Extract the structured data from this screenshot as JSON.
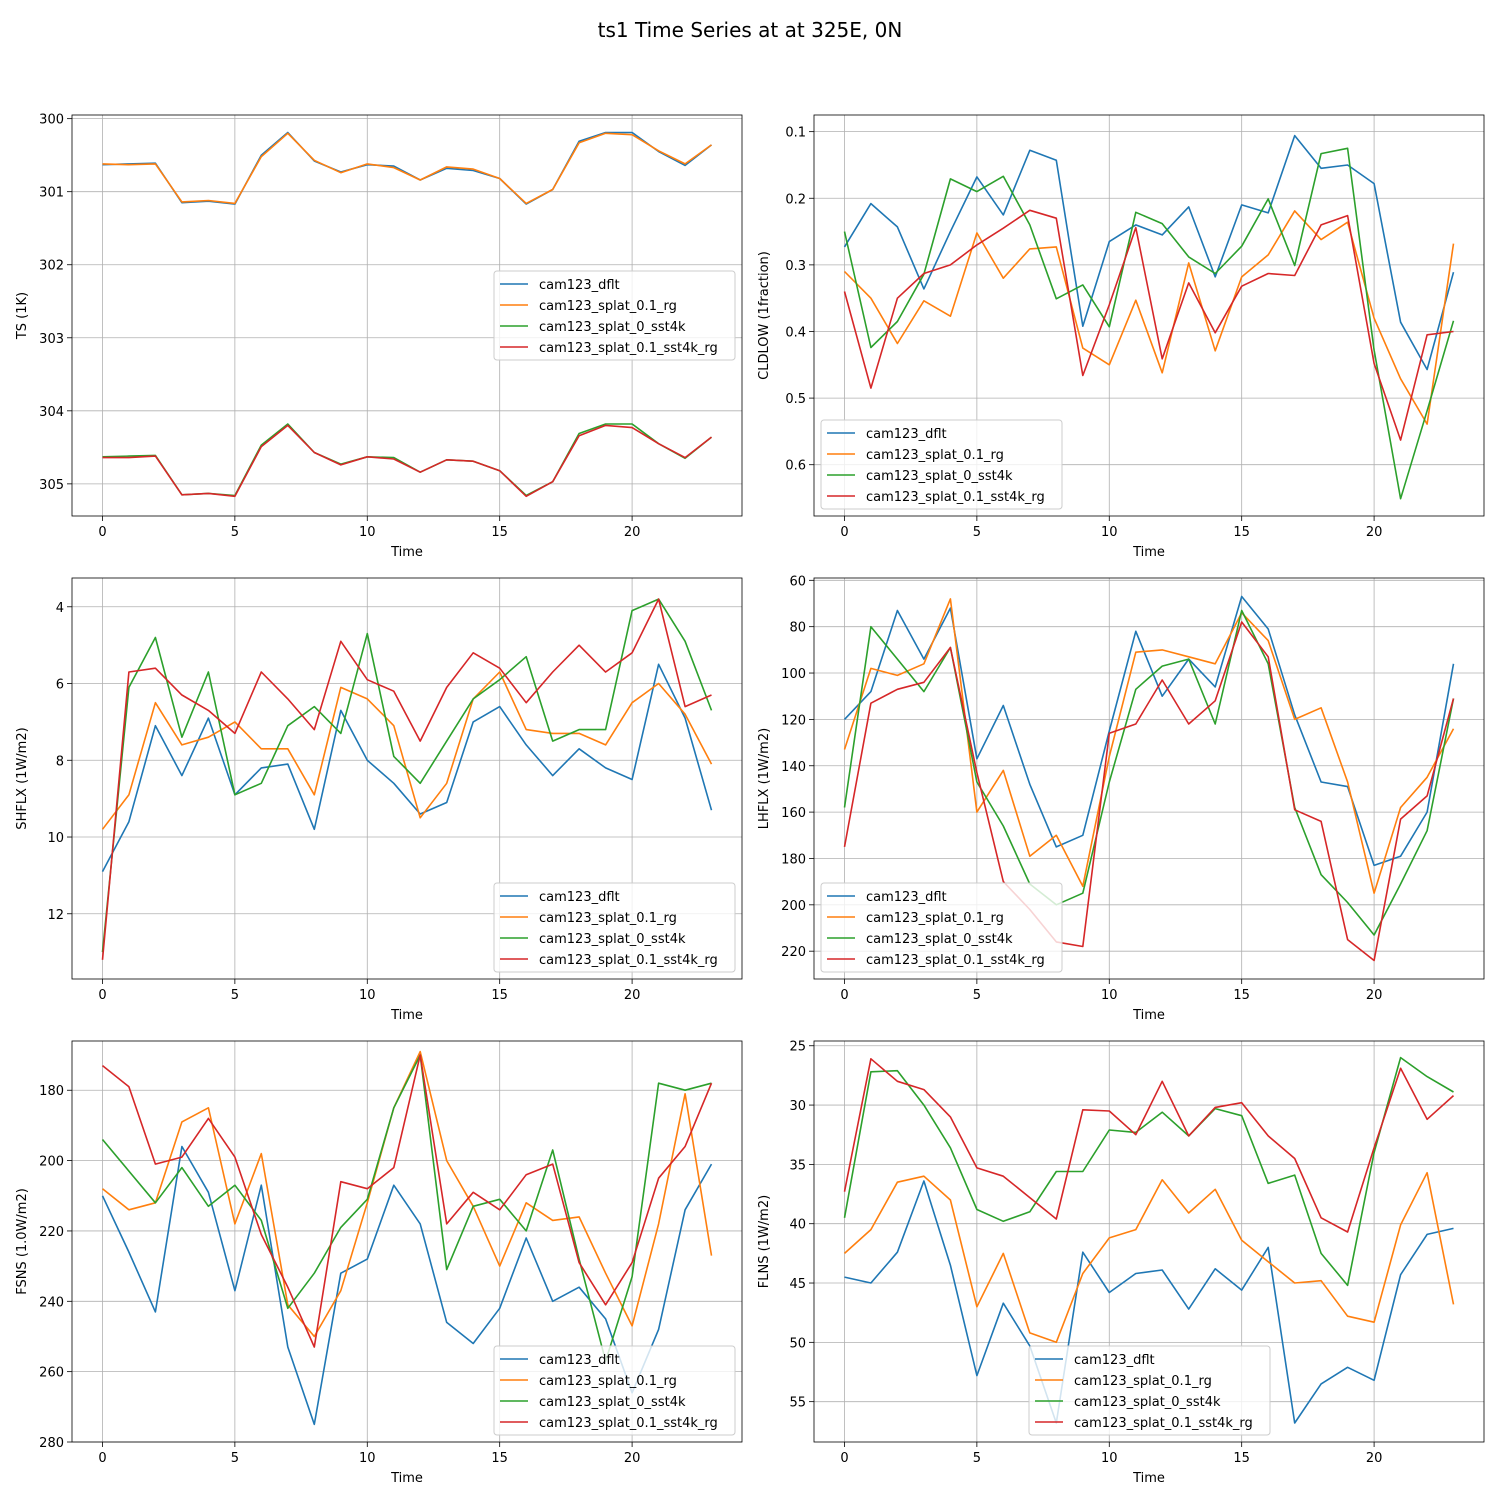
{
  "figure": {
    "title": "ts1 Time Series at at 325E, 0N"
  },
  "colors": {
    "cam123_dflt": "#1f77b4",
    "cam123_splat_0.1_rg": "#ff7f0e",
    "cam123_splat_0_sst4k": "#2ca02c",
    "cam123_splat_0.1_sst4k_rg": "#d62728"
  },
  "chart_data": [
    {
      "type": "line",
      "title": "",
      "xlabel": "Time",
      "ylabel": "TS (1K)",
      "y_inverted": true,
      "xlim": [
        -1.15,
        24.15
      ],
      "ylim": [
        305.44,
        299.95
      ],
      "xticks": [
        0,
        5,
        10,
        15,
        20
      ],
      "yticks": [
        300,
        301,
        302,
        303,
        304,
        305
      ],
      "legend_loc": "center-right",
      "x": [
        0,
        1,
        2,
        3,
        4,
        5,
        6,
        7,
        8,
        9,
        10,
        11,
        12,
        13,
        14,
        15,
        16,
        17,
        18,
        19,
        20,
        21,
        22,
        23
      ],
      "series": [
        {
          "name": "cam123_dflt",
          "values": [
            300.63,
            300.62,
            300.61,
            301.15,
            301.13,
            301.17,
            300.5,
            300.19,
            300.58,
            300.73,
            300.63,
            300.65,
            300.84,
            300.68,
            300.71,
            300.82,
            301.17,
            300.97,
            300.31,
            300.19,
            300.19,
            300.45,
            300.64,
            300.36
          ]
        },
        {
          "name": "cam123_splat_0.1_rg",
          "values": [
            300.62,
            300.63,
            300.62,
            301.14,
            301.12,
            301.16,
            300.52,
            300.2,
            300.57,
            300.74,
            300.62,
            300.67,
            300.84,
            300.66,
            300.69,
            300.82,
            301.16,
            300.97,
            300.33,
            300.2,
            300.22,
            300.44,
            300.62,
            300.36
          ]
        },
        {
          "name": "cam123_splat_0_sst4k",
          "values": [
            304.63,
            304.62,
            304.61,
            305.15,
            305.13,
            305.16,
            304.47,
            304.18,
            304.57,
            304.73,
            304.63,
            304.64,
            304.84,
            304.67,
            304.69,
            304.82,
            305.16,
            304.97,
            304.31,
            304.18,
            304.18,
            304.45,
            304.65,
            304.36
          ]
        },
        {
          "name": "cam123_splat_0.1_sst4k_rg",
          "values": [
            304.64,
            304.64,
            304.62,
            305.15,
            305.13,
            305.17,
            304.49,
            304.2,
            304.57,
            304.74,
            304.63,
            304.66,
            304.84,
            304.67,
            304.69,
            304.82,
            305.17,
            304.97,
            304.34,
            304.2,
            304.23,
            304.45,
            304.64,
            304.36
          ]
        }
      ]
    },
    {
      "type": "line",
      "title": "",
      "xlabel": "Time",
      "ylabel": "CLDLOW (1fraction)",
      "y_inverted": true,
      "xlim": [
        -1.15,
        24.15
      ],
      "ylim": [
        0.677,
        0.075
      ],
      "xticks": [
        0,
        5,
        10,
        15,
        20
      ],
      "yticks": [
        0.1,
        0.2,
        0.3,
        0.4,
        0.5,
        0.6
      ],
      "legend_loc": "lower-left",
      "x": [
        0,
        1,
        2,
        3,
        4,
        5,
        6,
        7,
        8,
        9,
        10,
        11,
        12,
        13,
        14,
        15,
        16,
        17,
        18,
        19,
        20,
        21,
        22,
        23
      ],
      "series": [
        {
          "name": "cam123_dflt",
          "values": [
            0.273,
            0.208,
            0.243,
            0.336,
            0.25,
            0.168,
            0.225,
            0.128,
            0.143,
            0.392,
            0.265,
            0.24,
            0.255,
            0.213,
            0.318,
            0.21,
            0.222,
            0.106,
            0.155,
            0.15,
            0.178,
            0.386,
            0.457,
            0.311
          ]
        },
        {
          "name": "cam123_splat_0.1_rg",
          "values": [
            0.31,
            0.35,
            0.418,
            0.354,
            0.377,
            0.252,
            0.32,
            0.276,
            0.273,
            0.425,
            0.45,
            0.353,
            0.462,
            0.297,
            0.429,
            0.318,
            0.285,
            0.219,
            0.262,
            0.236,
            0.38,
            0.471,
            0.539,
            0.268
          ]
        },
        {
          "name": "cam123_splat_0_sst4k",
          "values": [
            0.25,
            0.424,
            0.385,
            0.314,
            0.171,
            0.19,
            0.167,
            0.24,
            0.351,
            0.33,
            0.393,
            0.221,
            0.238,
            0.288,
            0.313,
            0.272,
            0.201,
            0.301,
            0.133,
            0.125,
            0.428,
            0.651,
            0.519,
            0.384
          ]
        },
        {
          "name": "cam123_splat_0.1_sst4k_rg",
          "values": [
            0.34,
            0.485,
            0.35,
            0.313,
            0.3,
            0.27,
            0.245,
            0.218,
            0.23,
            0.466,
            0.36,
            0.244,
            0.441,
            0.327,
            0.402,
            0.332,
            0.313,
            0.316,
            0.24,
            0.226,
            0.448,
            0.563,
            0.405,
            0.4
          ]
        }
      ]
    },
    {
      "type": "line",
      "title": "",
      "xlabel": "Time",
      "ylabel": "SHFLX (1W/m2)",
      "y_inverted": true,
      "xlim": [
        -1.15,
        24.15
      ],
      "ylim": [
        13.7,
        3.25
      ],
      "xticks": [
        0,
        5,
        10,
        15,
        20
      ],
      "yticks": [
        4,
        6,
        8,
        10,
        12
      ],
      "legend_loc": "lower-right",
      "x": [
        0,
        1,
        2,
        3,
        4,
        5,
        6,
        7,
        8,
        9,
        10,
        11,
        12,
        13,
        14,
        15,
        16,
        17,
        18,
        19,
        20,
        21,
        22,
        23
      ],
      "series": [
        {
          "name": "cam123_dflt",
          "values": [
            10.9,
            9.6,
            7.1,
            8.4,
            6.9,
            8.9,
            8.2,
            8.1,
            9.8,
            6.7,
            8.0,
            8.6,
            9.4,
            9.1,
            7.0,
            6.6,
            7.6,
            8.4,
            7.7,
            8.2,
            8.5,
            5.5,
            6.9,
            9.3
          ]
        },
        {
          "name": "cam123_splat_0.1_rg",
          "values": [
            9.8,
            8.9,
            6.5,
            7.6,
            7.4,
            7.0,
            7.7,
            7.7,
            8.9,
            6.1,
            6.4,
            7.1,
            9.5,
            8.6,
            6.4,
            5.7,
            7.2,
            7.3,
            7.3,
            7.6,
            6.5,
            6.0,
            6.8,
            8.1
          ]
        },
        {
          "name": "cam123_splat_0_sst4k",
          "values": [
            13.0,
            6.1,
            4.8,
            7.4,
            5.7,
            8.9,
            8.6,
            7.1,
            6.6,
            7.3,
            4.7,
            7.9,
            8.6,
            7.5,
            6.4,
            5.9,
            5.3,
            7.5,
            7.2,
            7.2,
            4.1,
            3.8,
            4.9,
            6.7
          ]
        },
        {
          "name": "cam123_splat_0.1_sst4k_rg",
          "values": [
            13.2,
            5.7,
            5.6,
            6.3,
            6.7,
            7.3,
            5.7,
            6.4,
            7.2,
            4.9,
            5.9,
            6.2,
            7.5,
            6.1,
            5.2,
            5.6,
            6.5,
            5.7,
            5.0,
            5.7,
            5.2,
            3.8,
            6.6,
            6.3
          ]
        }
      ]
    },
    {
      "type": "line",
      "title": "",
      "xlabel": "Time",
      "ylabel": "LHFLX (1W/m2)",
      "y_inverted": true,
      "xlim": [
        -1.15,
        24.15
      ],
      "ylim": [
        232,
        59
      ],
      "xticks": [
        0,
        5,
        10,
        15,
        20
      ],
      "yticks": [
        60,
        80,
        100,
        120,
        140,
        160,
        180,
        200,
        220
      ],
      "legend_loc": "lower-left",
      "x": [
        0,
        1,
        2,
        3,
        4,
        5,
        6,
        7,
        8,
        9,
        10,
        11,
        12,
        13,
        14,
        15,
        16,
        17,
        18,
        19,
        20,
        21,
        22,
        23
      ],
      "series": [
        {
          "name": "cam123_dflt",
          "values": [
            120,
            108,
            73,
            94,
            72,
            137,
            114,
            148,
            175,
            170,
            125,
            82,
            110,
            94,
            106,
            67,
            81,
            118,
            147,
            149,
            183,
            179,
            160,
            96
          ]
        },
        {
          "name": "cam123_splat_0.1_rg",
          "values": [
            133,
            98,
            101,
            96,
            68,
            160,
            142,
            179,
            170,
            192,
            136,
            91,
            90,
            93,
            96,
            74,
            86,
            120,
            115,
            147,
            195,
            158,
            145,
            124
          ]
        },
        {
          "name": "cam123_splat_0_sst4k",
          "values": [
            158,
            80,
            94,
            108,
            89,
            147,
            166,
            191,
            200,
            195,
            147,
            107,
            97,
            94,
            122,
            73,
            96,
            158,
            187,
            199,
            213,
            191,
            168,
            111
          ]
        },
        {
          "name": "cam123_splat_0.1_sst4k_rg",
          "values": [
            175,
            113,
            107,
            104,
            89,
            143,
            190,
            202,
            216,
            218,
            126,
            122,
            103,
            122,
            112,
            78,
            93,
            159,
            164,
            215,
            224,
            163,
            153,
            111
          ]
        }
      ]
    },
    {
      "type": "line",
      "title": "",
      "xlabel": "Time",
      "ylabel": "FSNS (1.0W/m2)",
      "y_inverted": true,
      "xlim": [
        -1.15,
        24.15
      ],
      "ylim": [
        280,
        166
      ],
      "xticks": [
        0,
        5,
        10,
        15,
        20
      ],
      "yticks": [
        180,
        200,
        220,
        240,
        260,
        280
      ],
      "legend_loc": "lower-right",
      "x": [
        0,
        1,
        2,
        3,
        4,
        5,
        6,
        7,
        8,
        9,
        10,
        11,
        12,
        13,
        14,
        15,
        16,
        17,
        18,
        19,
        20,
        21,
        22,
        23
      ],
      "series": [
        {
          "name": "cam123_dflt",
          "values": [
            210,
            226,
            243,
            196,
            209,
            237,
            207,
            253,
            275,
            232,
            228,
            207,
            218,
            246,
            252,
            242,
            222,
            240,
            236,
            245,
            266,
            248,
            214,
            201
          ]
        },
        {
          "name": "cam123_splat_0.1_rg",
          "values": [
            208,
            214,
            212,
            189,
            185,
            218,
            198,
            241,
            250,
            237,
            212,
            185,
            169,
            200,
            213,
            230,
            212,
            217,
            216,
            232,
            247,
            218,
            181,
            227
          ]
        },
        {
          "name": "cam123_splat_0_sst4k",
          "values": [
            194,
            203,
            212,
            202,
            213,
            207,
            217,
            242,
            232,
            219,
            211,
            185,
            170,
            231,
            213,
            211,
            220,
            197,
            228,
            257,
            233,
            178,
            180,
            178
          ]
        },
        {
          "name": "cam123_splat_0.1_sst4k_rg",
          "values": [
            173,
            179,
            201,
            199,
            188,
            199,
            221,
            236,
            253,
            206,
            208,
            202,
            170,
            218,
            209,
            214,
            204,
            201,
            229,
            241,
            229,
            205,
            196,
            178
          ]
        }
      ]
    },
    {
      "type": "line",
      "title": "",
      "xlabel": "Time",
      "ylabel": "FLNS (1W/m2)",
      "y_inverted": true,
      "xlim": [
        -1.15,
        24.15
      ],
      "ylim": [
        58.4,
        24.6
      ],
      "xticks": [
        0,
        5,
        10,
        15,
        20
      ],
      "yticks": [
        25,
        30,
        35,
        40,
        45,
        50,
        55
      ],
      "legend_loc": "lower-center",
      "x": [
        0,
        1,
        2,
        3,
        4,
        5,
        6,
        7,
        8,
        9,
        10,
        11,
        12,
        13,
        14,
        15,
        16,
        17,
        18,
        19,
        20,
        21,
        22,
        23
      ],
      "series": [
        {
          "name": "cam123_dflt",
          "values": [
            44.5,
            45.0,
            42.4,
            36.4,
            43.5,
            52.8,
            46.7,
            50.3,
            56.8,
            42.4,
            45.8,
            44.2,
            43.9,
            47.2,
            43.8,
            45.6,
            42.0,
            56.8,
            53.5,
            52.1,
            53.2,
            44.3,
            40.9,
            40.4
          ]
        },
        {
          "name": "cam123_splat_0.1_rg",
          "values": [
            42.5,
            40.5,
            36.5,
            36.0,
            38.0,
            47.0,
            42.5,
            49.2,
            50.0,
            44.2,
            41.2,
            40.5,
            36.3,
            39.1,
            37.1,
            41.4,
            43.2,
            45.0,
            44.8,
            47.8,
            48.3,
            40.1,
            35.7,
            46.8
          ]
        },
        {
          "name": "cam123_splat_0_sst4k",
          "values": [
            39.5,
            27.2,
            27.1,
            30.0,
            33.6,
            38.8,
            39.8,
            39.0,
            35.6,
            35.6,
            32.1,
            32.3,
            30.6,
            32.6,
            30.3,
            30.9,
            36.6,
            35.9,
            42.5,
            45.2,
            34.0,
            26.0,
            27.6,
            28.9
          ]
        },
        {
          "name": "cam123_splat_0.1_sst4k_rg",
          "values": [
            37.3,
            26.1,
            28.0,
            28.7,
            31.0,
            35.3,
            36.0,
            37.8,
            39.6,
            30.4,
            30.5,
            32.5,
            28.0,
            32.6,
            30.2,
            29.8,
            32.6,
            34.5,
            39.5,
            40.7,
            33.6,
            26.9,
            31.2,
            29.2
          ]
        }
      ]
    }
  ]
}
